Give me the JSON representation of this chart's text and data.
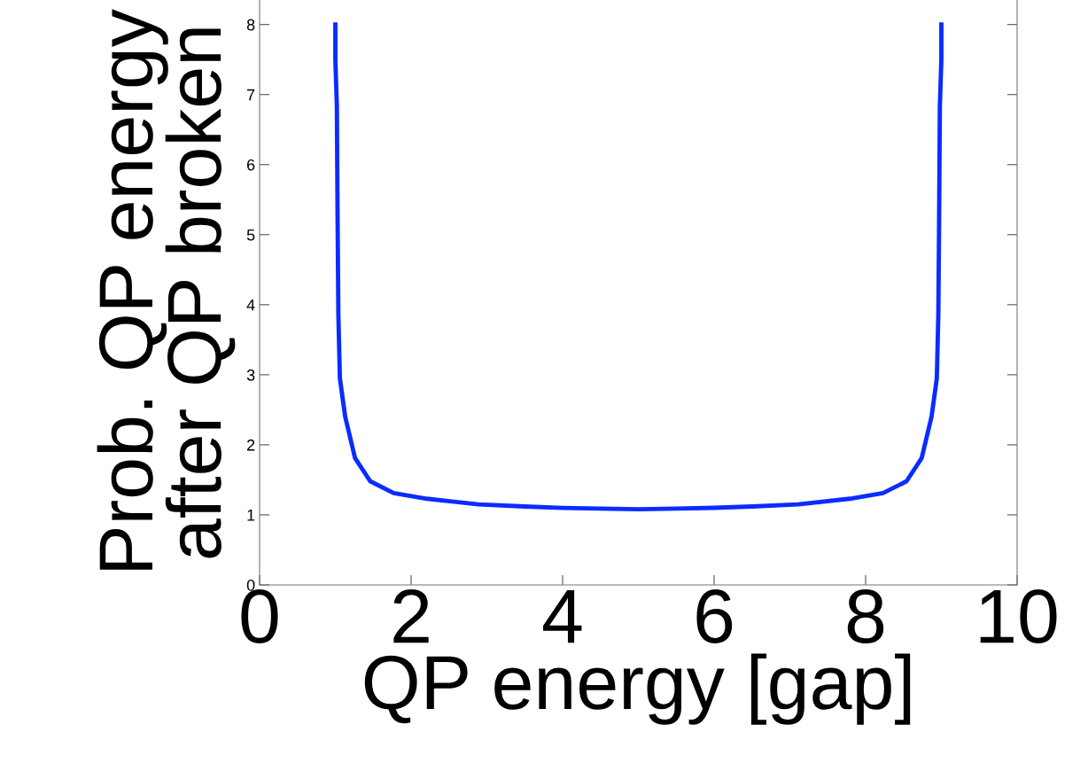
{
  "chart_data": {
    "type": "line",
    "xlabel": "QP energy [gap]",
    "ylabel": "Prob. QP energy\nafter QP broken",
    "series": [
      {
        "color": "#0a2cff",
        "x": [
          1.0,
          1.0,
          1.02,
          1.03,
          1.04,
          1.06,
          1.13,
          1.26,
          1.46,
          1.77,
          2.21,
          2.89,
          3.5,
          4.0,
          4.5,
          5.0,
          5.5,
          6.0,
          6.5,
          7.11,
          7.79,
          8.23,
          8.54,
          8.74,
          8.87,
          8.94,
          8.96,
          8.97,
          8.98,
          9.0,
          9.0
        ],
        "values": [
          8.0,
          7.5,
          6.83,
          5.16,
          3.86,
          2.95,
          2.4,
          1.81,
          1.48,
          1.31,
          1.23,
          1.15,
          1.12,
          1.1,
          1.09,
          1.08,
          1.09,
          1.1,
          1.12,
          1.15,
          1.23,
          1.31,
          1.48,
          1.81,
          2.4,
          2.95,
          3.86,
          5.16,
          6.83,
          7.5,
          8.0
        ]
      }
    ],
    "xlim": [
      0,
      10
    ],
    "xticks": [
      0,
      2,
      4,
      6,
      8,
      10
    ],
    "ylim": [
      0,
      8.35
    ],
    "yticks": [
      0,
      1,
      2,
      3,
      4,
      5,
      6,
      7,
      8
    ],
    "grid": false,
    "legend": false
  }
}
